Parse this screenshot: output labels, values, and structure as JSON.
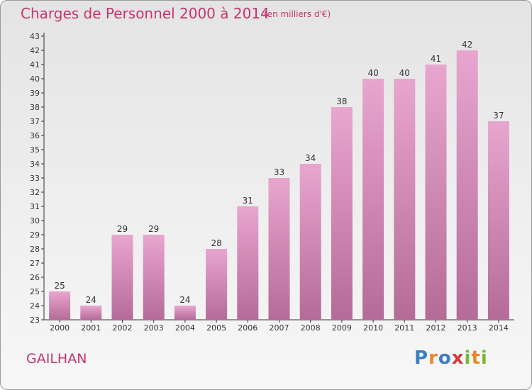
{
  "title": "Charges de Personnel 2000 à 2014",
  "subtitle": "(en milliers d'€)",
  "commune": "GAILHAN",
  "logo": {
    "letters": [
      "P",
      "r",
      "o",
      "x",
      "i",
      "t",
      "i"
    ],
    "colors": [
      "#3c7ec4",
      "#e8882a",
      "#3c7ec4",
      "#d43c3c",
      "#7ab63c",
      "#e8882a",
      "#7ab63c"
    ]
  },
  "colors": {
    "title": "#c8356e",
    "bar_top": "#e8a6cf",
    "bar_bottom": "#b56b98",
    "axis": "#333333"
  },
  "chart_data": {
    "type": "bar",
    "categories": [
      "2000",
      "2001",
      "2002",
      "2003",
      "2004",
      "2005",
      "2006",
      "2007",
      "2008",
      "2009",
      "2010",
      "2011",
      "2012",
      "2013",
      "2014"
    ],
    "values": [
      25,
      24,
      29,
      29,
      24,
      28,
      31,
      33,
      34,
      38,
      40,
      40,
      41,
      42,
      37
    ],
    "ylim": [
      23,
      43
    ],
    "yticks": [
      23,
      24,
      25,
      26,
      27,
      28,
      29,
      30,
      31,
      32,
      33,
      34,
      35,
      36,
      37,
      38,
      39,
      40,
      41,
      42,
      43
    ],
    "grid": false
  }
}
